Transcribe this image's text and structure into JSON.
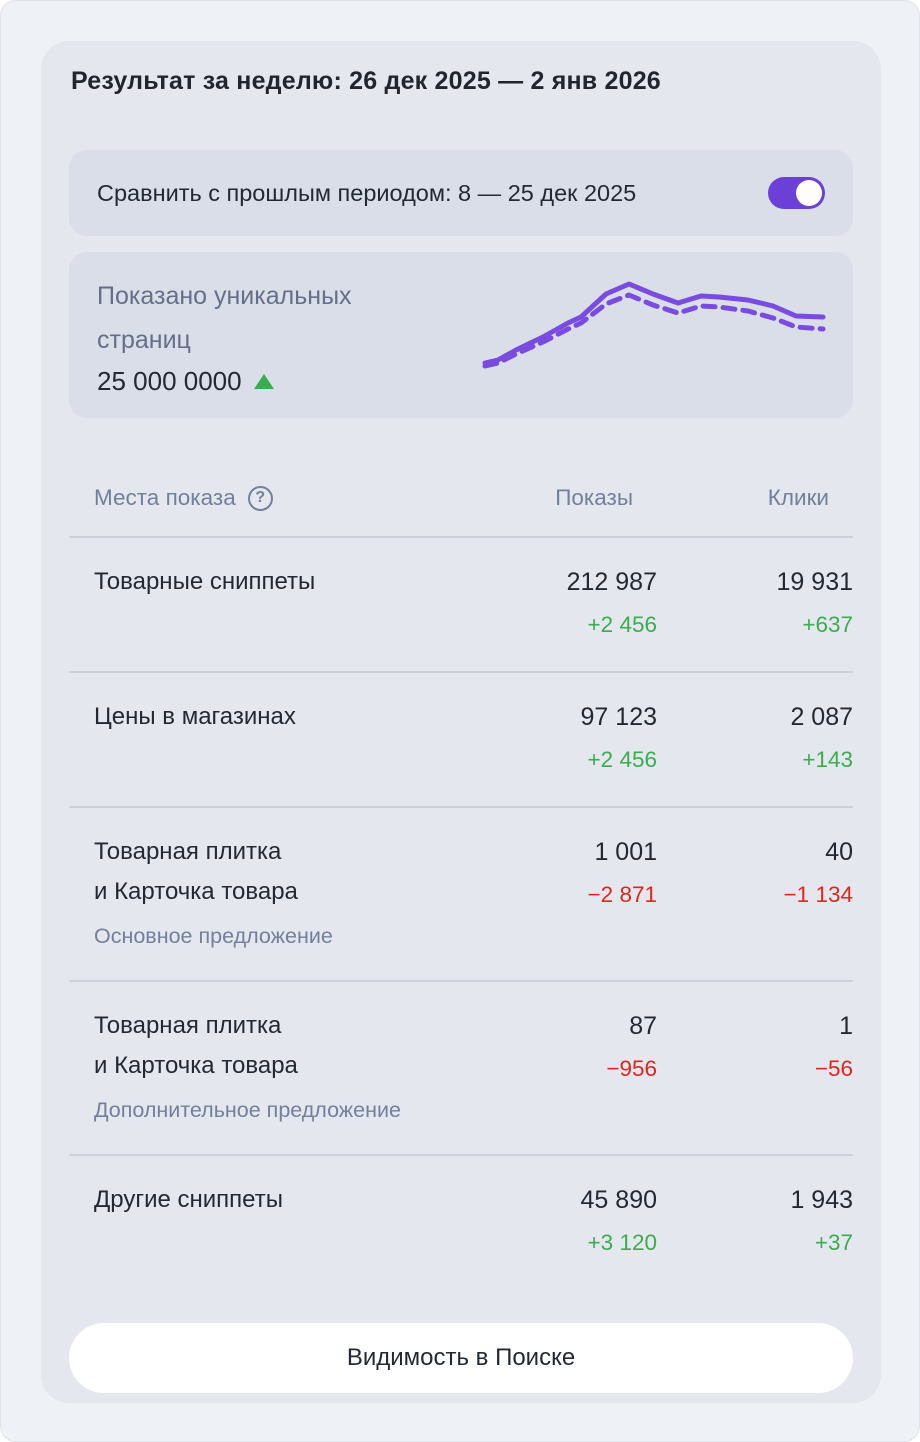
{
  "header": {
    "title": "Результат за неделю: 26 дек 2025 — 2 янв 2026"
  },
  "compare": {
    "label": "Сравнить с прошлым периодом: 8 — 25 дек 2025",
    "toggle_state": "on"
  },
  "summary": {
    "label_line1": "Показано уникальных",
    "label_line2": "страниц",
    "value": "25 000 0000",
    "trend": "up"
  },
  "chart_data": {
    "type": "line",
    "title": "Показано уникальных страниц",
    "value_label": "25 000 0000",
    "legend": "none",
    "axes": "hidden sparkline, two purple series (current period solid, previous period dashed)",
    "color": "#7a4be0",
    "series": [
      {
        "name": "current-period",
        "style": "solid",
        "points": [
          [
            4,
            88
          ],
          [
            17,
            85
          ],
          [
            35,
            75
          ],
          [
            62,
            62
          ],
          [
            87,
            48
          ],
          [
            100,
            42
          ],
          [
            125,
            19
          ],
          [
            148,
            9
          ],
          [
            172,
            19
          ],
          [
            197,
            28
          ],
          [
            220,
            21
          ],
          [
            238,
            22
          ],
          [
            267,
            25
          ],
          [
            292,
            31
          ],
          [
            315,
            41
          ],
          [
            342,
            42
          ]
        ]
      },
      {
        "name": "previous-period",
        "style": "dashed",
        "points": [
          [
            4,
            91
          ],
          [
            17,
            88
          ],
          [
            35,
            79
          ],
          [
            62,
            67
          ],
          [
            87,
            54
          ],
          [
            100,
            48
          ],
          [
            125,
            29
          ],
          [
            148,
            20
          ],
          [
            172,
            30
          ],
          [
            197,
            38
          ],
          [
            220,
            31
          ],
          [
            238,
            32
          ],
          [
            267,
            36
          ],
          [
            292,
            43
          ],
          [
            315,
            52
          ],
          [
            342,
            54
          ]
        ]
      }
    ]
  },
  "table": {
    "columns": {
      "places": "Места показа",
      "impressions": "Показы",
      "clicks": "Клики",
      "help_icon": "question-mark-circle"
    },
    "rows": [
      {
        "label": "Товарные сниппеты",
        "impressions": "212 987",
        "impressions_delta": "+2 456",
        "impressions_delta_dir": "up",
        "clicks": "19 931",
        "clicks_delta": "+637",
        "clicks_delta_dir": "up"
      },
      {
        "label": "Цены в магазинах",
        "impressions": "97 123",
        "impressions_delta": "+2 456",
        "impressions_delta_dir": "up",
        "clicks": "2 087",
        "clicks_delta": "+143",
        "clicks_delta_dir": "up"
      },
      {
        "label": "Товарная плитка",
        "label2": "и Карточка товара",
        "sublabel": "Основное предложение",
        "impressions": "1 001",
        "impressions_delta": "−2 871",
        "impressions_delta_dir": "down",
        "clicks": "40",
        "clicks_delta": "−1 134",
        "clicks_delta_dir": "down"
      },
      {
        "label": "Товарная плитка",
        "label2": "и Карточка товара",
        "sublabel": "Дополнительное предложение",
        "impressions": "87",
        "impressions_delta": "−956",
        "impressions_delta_dir": "down",
        "clicks": "1",
        "clicks_delta": "−56",
        "clicks_delta_dir": "down"
      },
      {
        "label": "Другие сниппеты",
        "impressions": "45 890",
        "impressions_delta": "+3 120",
        "impressions_delta_dir": "up",
        "clicks": "1 943",
        "clicks_delta": "+37",
        "clicks_delta_dir": "up"
      }
    ]
  },
  "footer": {
    "button_label": "Видимость в Поиске"
  },
  "colors": {
    "outer_background": "#eef1f6",
    "card_background": "#e4e7ee",
    "subcard_background": "#d9dee8",
    "divider": "#cbd0da",
    "text_primary": "#232933",
    "text_secondary": "#72809b",
    "accent_purple": "#6c3fd6",
    "chart_purple": "#7a4be0",
    "positive_green": "#3aad4e",
    "negative_red": "#e0261c",
    "button_background": "#ffffff"
  }
}
